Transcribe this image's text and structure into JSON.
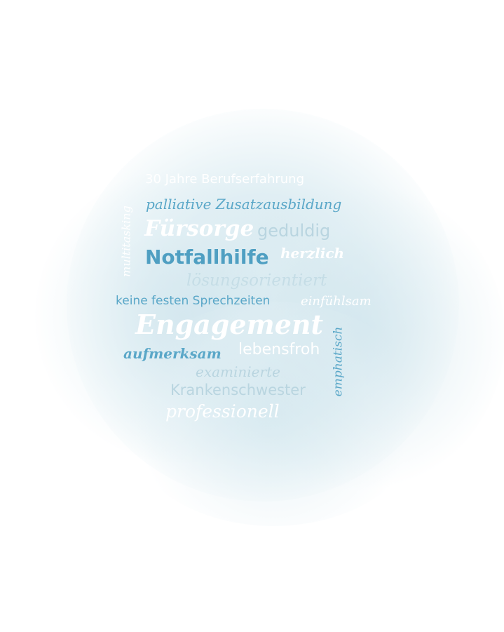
{
  "words": {
    "w1": "30 Jahre Berufserfahrung",
    "w2": "palliative Zusatzausbildung",
    "w3": "multitasking",
    "w4": "Fürsorge",
    "w5": "geduldig",
    "w6": "Notfallhilfe",
    "w7": "herzlich",
    "w8": "lösungsorientiert",
    "w9": "keine festen Sprechzeiten",
    "w10": "einfühlsam",
    "w11": "Engagement",
    "w12": "emphatisch",
    "w13": "aufmerksam",
    "w14": "lebensfroh",
    "w15": "examinierte",
    "w16": "Krankenschwester",
    "w17": "professionell"
  },
  "colors": {
    "white": "#ffffff",
    "light": "#b9d5e0",
    "medium": "#6fb0cb",
    "dark": "#4f9fc2"
  }
}
